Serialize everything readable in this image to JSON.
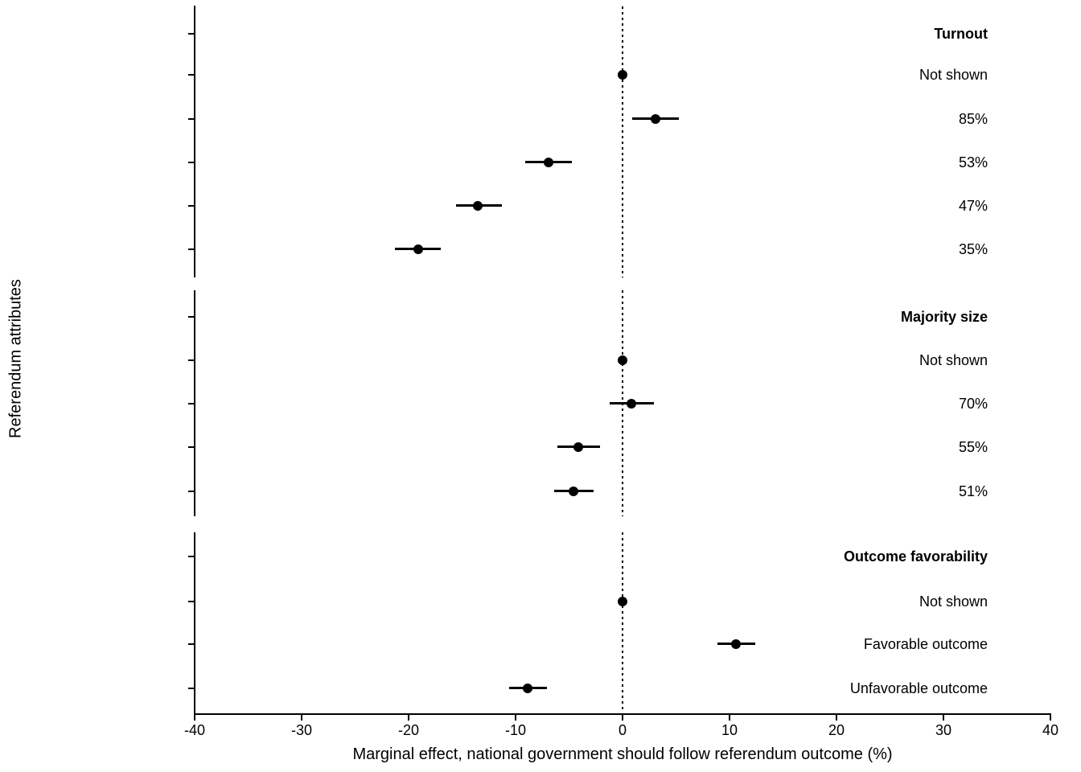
{
  "page": {
    "background": "#ffffff",
    "text_color": "#000000"
  },
  "chart_data": {
    "type": "scatter",
    "variant": "dot_and_whisker_coefficient_plot",
    "title": "",
    "xlabel": "Marginal effect, national government should follow referendum outcome (%)",
    "ylabel": "Referendum attributes",
    "xlim": [
      -40,
      40
    ],
    "xticks": [
      -40,
      -30,
      -20,
      -10,
      0,
      10,
      20,
      30,
      40
    ],
    "xtick_labels": [
      "-40",
      "-30",
      "-20",
      "-10",
      "0",
      "10",
      "20",
      "30",
      "40"
    ],
    "zero_line": {
      "x": 0,
      "style": "dotted"
    },
    "grid": false,
    "legend": "none",
    "point_color": "#000000",
    "error_bar_orientation": "horizontal",
    "groups": [
      {
        "header": "Turnout",
        "items": [
          {
            "label": "Not shown",
            "value": 0.0,
            "ci_low": null,
            "ci_high": null,
            "reference": true
          },
          {
            "label": "85%",
            "value": 3.1,
            "ci_low": 0.9,
            "ci_high": 5.3,
            "reference": false
          },
          {
            "label": "53%",
            "value": -6.9,
            "ci_low": -9.1,
            "ci_high": -4.7,
            "reference": false
          },
          {
            "label": "47%",
            "value": -13.5,
            "ci_low": -15.6,
            "ci_high": -11.3,
            "reference": false
          },
          {
            "label": "35%",
            "value": -19.1,
            "ci_low": -21.3,
            "ci_high": -17.0,
            "reference": false
          }
        ]
      },
      {
        "header": "Majority size",
        "items": [
          {
            "label": "Not shown",
            "value": 0.0,
            "ci_low": null,
            "ci_high": null,
            "reference": true
          },
          {
            "label": "70%",
            "value": 0.8,
            "ci_low": -1.2,
            "ci_high": 2.9,
            "reference": false
          },
          {
            "label": "55%",
            "value": -4.1,
            "ci_low": -6.1,
            "ci_high": -2.1,
            "reference": false
          },
          {
            "label": "51%",
            "value": -4.6,
            "ci_low": -6.4,
            "ci_high": -2.7,
            "reference": false
          }
        ]
      },
      {
        "header": "Outcome favorability",
        "items": [
          {
            "label": "Not shown",
            "value": 0.0,
            "ci_low": null,
            "ci_high": null,
            "reference": true
          },
          {
            "label": "Favorable outcome",
            "value": 10.6,
            "ci_low": 8.9,
            "ci_high": 12.4,
            "reference": false
          },
          {
            "label": "Unfavorable outcome",
            "value": -8.9,
            "ci_low": -10.6,
            "ci_high": -7.1,
            "reference": false
          }
        ]
      }
    ]
  }
}
